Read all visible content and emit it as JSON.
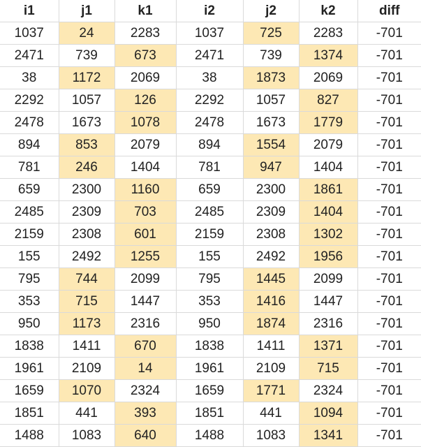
{
  "columns": [
    "i1",
    "j1",
    "k1",
    "i2",
    "j2",
    "k2",
    "diff"
  ],
  "highlight_color": "#fde8b4",
  "rows": [
    {
      "values": [
        "1037",
        "24",
        "2283",
        "1037",
        "725",
        "2283",
        "-701"
      ],
      "highlighted_cols": [
        1,
        4
      ]
    },
    {
      "values": [
        "2471",
        "739",
        "673",
        "2471",
        "739",
        "1374",
        "-701"
      ],
      "highlighted_cols": [
        2,
        5
      ]
    },
    {
      "values": [
        "38",
        "1172",
        "2069",
        "38",
        "1873",
        "2069",
        "-701"
      ],
      "highlighted_cols": [
        1,
        4
      ]
    },
    {
      "values": [
        "2292",
        "1057",
        "126",
        "2292",
        "1057",
        "827",
        "-701"
      ],
      "highlighted_cols": [
        2,
        5
      ]
    },
    {
      "values": [
        "2478",
        "1673",
        "1078",
        "2478",
        "1673",
        "1779",
        "-701"
      ],
      "highlighted_cols": [
        2,
        5
      ]
    },
    {
      "values": [
        "894",
        "853",
        "2079",
        "894",
        "1554",
        "2079",
        "-701"
      ],
      "highlighted_cols": [
        1,
        4
      ]
    },
    {
      "values": [
        "781",
        "246",
        "1404",
        "781",
        "947",
        "1404",
        "-701"
      ],
      "highlighted_cols": [
        1,
        4
      ]
    },
    {
      "values": [
        "659",
        "2300",
        "1160",
        "659",
        "2300",
        "1861",
        "-701"
      ],
      "highlighted_cols": [
        2,
        5
      ]
    },
    {
      "values": [
        "2485",
        "2309",
        "703",
        "2485",
        "2309",
        "1404",
        "-701"
      ],
      "highlighted_cols": [
        2,
        5
      ]
    },
    {
      "values": [
        "2159",
        "2308",
        "601",
        "2159",
        "2308",
        "1302",
        "-701"
      ],
      "highlighted_cols": [
        2,
        5
      ]
    },
    {
      "values": [
        "155",
        "2492",
        "1255",
        "155",
        "2492",
        "1956",
        "-701"
      ],
      "highlighted_cols": [
        2,
        5
      ]
    },
    {
      "values": [
        "795",
        "744",
        "2099",
        "795",
        "1445",
        "2099",
        "-701"
      ],
      "highlighted_cols": [
        1,
        4
      ]
    },
    {
      "values": [
        "353",
        "715",
        "1447",
        "353",
        "1416",
        "1447",
        "-701"
      ],
      "highlighted_cols": [
        1,
        4
      ]
    },
    {
      "values": [
        "950",
        "1173",
        "2316",
        "950",
        "1874",
        "2316",
        "-701"
      ],
      "highlighted_cols": [
        1,
        4
      ]
    },
    {
      "values": [
        "1838",
        "1411",
        "670",
        "1838",
        "1411",
        "1371",
        "-701"
      ],
      "highlighted_cols": [
        2,
        5
      ]
    },
    {
      "values": [
        "1961",
        "2109",
        "14",
        "1961",
        "2109",
        "715",
        "-701"
      ],
      "highlighted_cols": [
        2,
        5
      ]
    },
    {
      "values": [
        "1659",
        "1070",
        "2324",
        "1659",
        "1771",
        "2324",
        "-701"
      ],
      "highlighted_cols": [
        1,
        4
      ]
    },
    {
      "values": [
        "1851",
        "441",
        "393",
        "1851",
        "441",
        "1094",
        "-701"
      ],
      "highlighted_cols": [
        2,
        5
      ]
    },
    {
      "values": [
        "1488",
        "1083",
        "640",
        "1488",
        "1083",
        "1341",
        "-701"
      ],
      "highlighted_cols": [
        2,
        5
      ]
    }
  ]
}
